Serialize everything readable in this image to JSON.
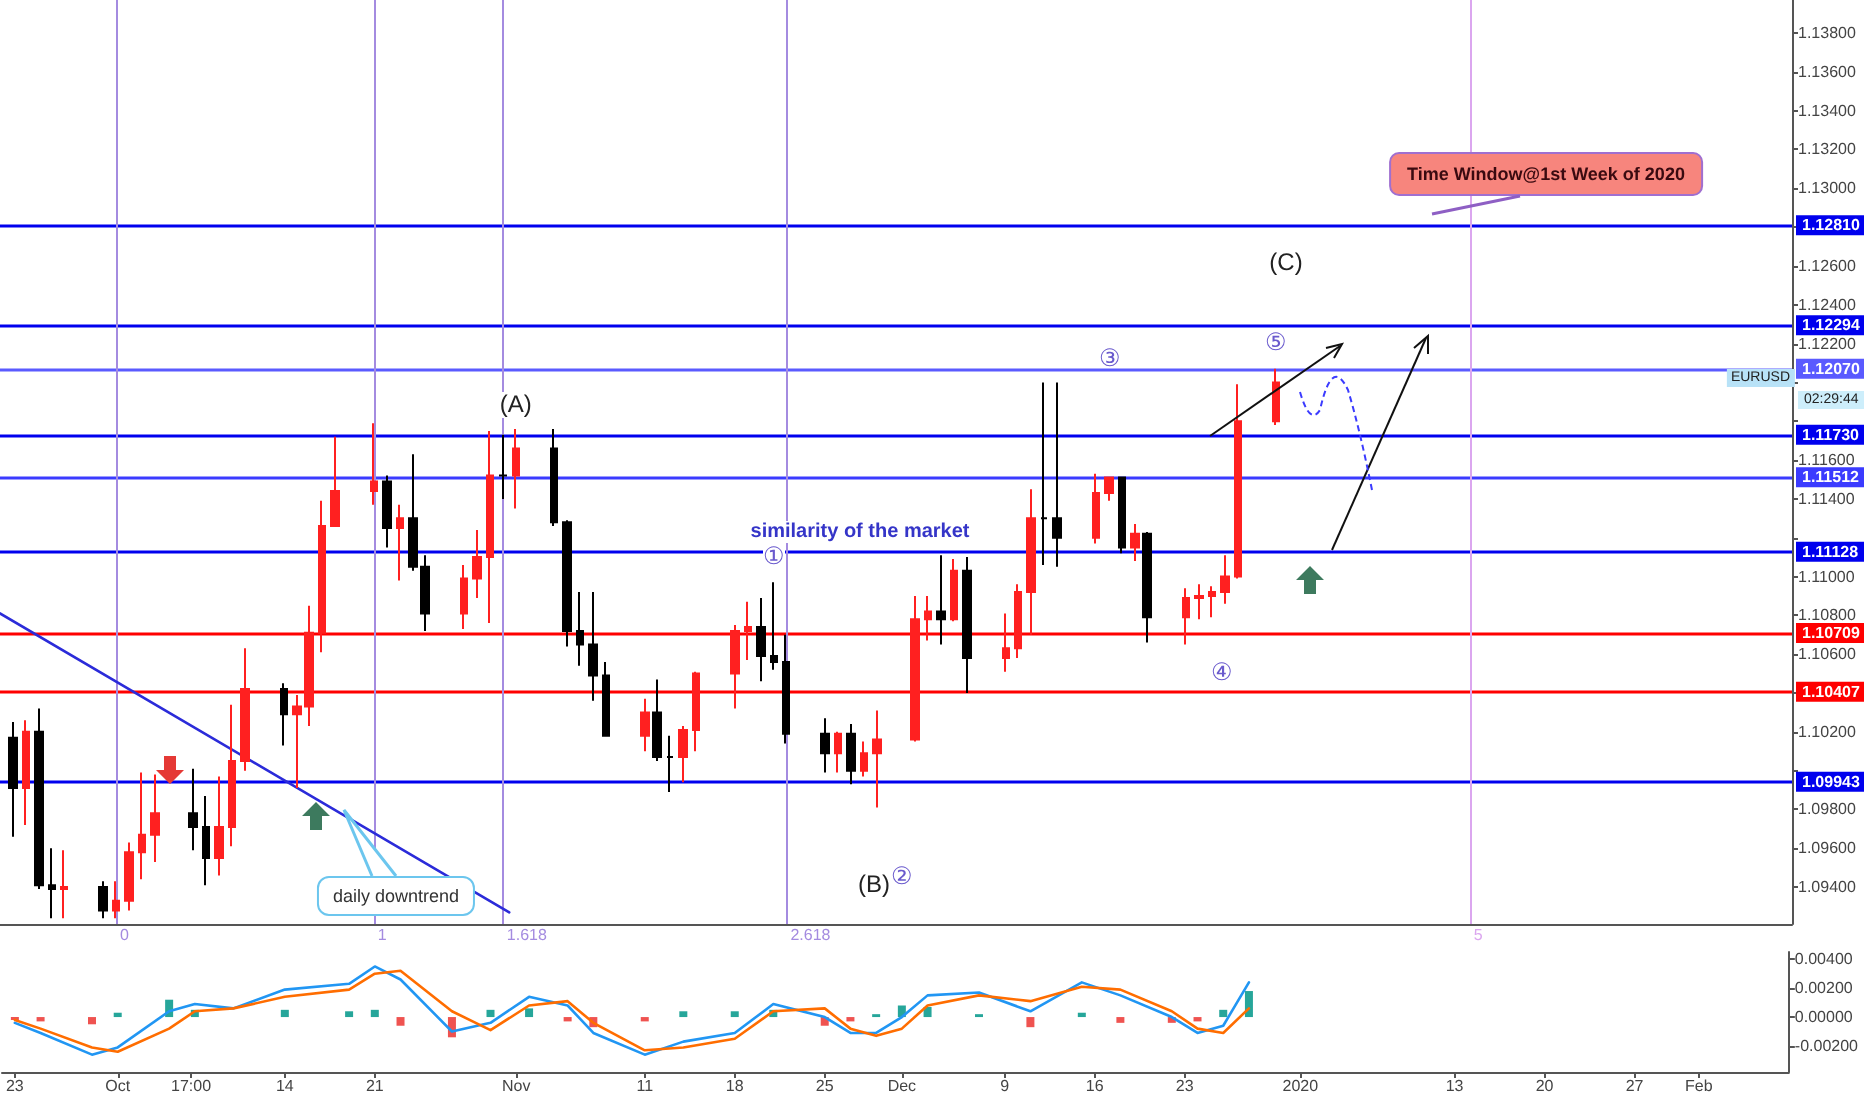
{
  "chart_data": [
    {
      "type": "candlestick",
      "tick_labels": "y",
      "grid": false,
      "marker": "none",
      "xlim": [
        "2019-09-22",
        "2020-02-08"
      ],
      "ylim": [
        1.0921,
        1.1397
      ],
      "yticks": [
        {
          "value": 1.094,
          "label": "1.09400"
        },
        {
          "value": 1.096,
          "label": "1.09600"
        },
        {
          "value": 1.098,
          "label": "1.09800"
        },
        {
          "value": 1.1,
          "label": null
        },
        {
          "value": 1.102,
          "label": "1.10200"
        },
        {
          "value": 1.104,
          "label": null
        },
        {
          "value": 1.106,
          "label": "1.10600"
        },
        {
          "value": 1.108,
          "label": "1.10800"
        },
        {
          "value": 1.11,
          "label": "1.11000"
        },
        {
          "value": 1.112,
          "label": null
        },
        {
          "value": 1.114,
          "label": "1.11400"
        },
        {
          "value": 1.116,
          "label": "1.11600"
        },
        {
          "value": 1.118,
          "label": null
        },
        {
          "value": 1.12,
          "label": null
        },
        {
          "value": 1.122,
          "label": "1.12200"
        },
        {
          "value": 1.124,
          "label": "1.12400"
        },
        {
          "value": 1.126,
          "label": "1.12600"
        },
        {
          "value": 1.128,
          "label": null
        },
        {
          "value": 1.13,
          "label": "1.13000"
        },
        {
          "value": 1.132,
          "label": "1.13200"
        },
        {
          "value": 1.134,
          "label": "1.13400"
        },
        {
          "value": 1.136,
          "label": "1.13600"
        },
        {
          "value": 1.138,
          "label": "1.13800"
        }
      ],
      "series": [
        {
          "x": [
            "2019-09-23",
            "2019-09-24",
            "2019-09-25",
            "2019-09-26",
            "2019-09-27",
            "2019-09-30",
            "2019-10-01",
            "2019-10-02",
            "2019-10-03",
            "2019-10-04",
            "2019-10-07",
            "2019-10-08",
            "2019-10-09",
            "2019-10-10",
            "2019-10-11",
            "2019-10-14",
            "2019-10-15",
            "2019-10-16",
            "2019-10-17",
            "2019-10-18",
            "2019-10-21",
            "2019-10-22",
            "2019-10-23",
            "2019-10-24",
            "2019-10-25",
            "2019-10-28",
            "2019-10-29",
            "2019-10-30",
            "2019-10-31",
            "2019-11-01",
            "2019-11-04",
            "2019-11-05",
            "2019-11-06",
            "2019-11-07",
            "2019-11-08",
            "2019-11-11",
            "2019-11-12",
            "2019-11-13",
            "2019-11-14",
            "2019-11-15",
            "2019-11-18",
            "2019-11-19",
            "2019-11-20",
            "2019-11-21",
            "2019-11-22",
            "2019-11-25",
            "2019-11-26",
            "2019-11-27",
            "2019-11-28",
            "2019-11-29",
            "2019-12-02",
            "2019-12-03",
            "2019-12-04",
            "2019-12-05",
            "2019-12-06",
            "2019-12-09",
            "2019-12-10",
            "2019-12-11",
            "2019-12-12",
            "2019-12-13",
            "2019-12-16",
            "2019-12-17",
            "2019-12-18",
            "2019-12-19",
            "2019-12-20",
            "2019-12-23",
            "2019-12-24",
            "2019-12-25",
            "2019-12-26",
            "2019-12-27",
            "2019-12-30"
          ],
          "ohlc": [
            [
              1.1017,
              1.1025,
              1.0966,
              1.0991
            ],
            [
              1.0991,
              1.1026,
              1.0972,
              1.102
            ],
            [
              1.102,
              1.1032,
              1.0939,
              1.0941
            ],
            [
              1.0941,
              1.096,
              1.0924,
              1.0939
            ],
            [
              1.0939,
              1.0959,
              1.0924,
              1.094
            ],
            [
              1.094,
              1.0943,
              1.0924,
              1.0928
            ],
            [
              1.0928,
              1.0943,
              1.0924,
              1.0933
            ],
            [
              1.0933,
              1.0963,
              1.0928,
              1.0958
            ],
            [
              1.0958,
              1.0999,
              1.0944,
              1.0967
            ],
            [
              1.0967,
              1.0998,
              1.0953,
              1.0978
            ],
            [
              1.0978,
              1.1001,
              1.0959,
              1.0971
            ],
            [
              1.0971,
              1.0987,
              1.0941,
              1.0955
            ],
            [
              1.0955,
              1.0997,
              1.0946,
              1.0971
            ],
            [
              1.0971,
              1.1034,
              1.0961,
              1.1005
            ],
            [
              1.1005,
              1.1063,
              1.1,
              1.1042
            ],
            [
              1.1042,
              1.1045,
              1.1013,
              1.1029
            ],
            [
              1.1029,
              1.1039,
              1.0991,
              1.1033
            ],
            [
              1.1033,
              1.1085,
              1.1023,
              1.1071
            ],
            [
              1.1071,
              1.1139,
              1.1061,
              1.1126
            ],
            [
              1.1126,
              1.1172,
              1.1126,
              1.1144
            ],
            [
              1.1144,
              1.1179,
              1.1137,
              1.1149
            ],
            [
              1.1149,
              1.1152,
              1.1115,
              1.1125
            ],
            [
              1.1125,
              1.1137,
              1.1098,
              1.113
            ],
            [
              1.113,
              1.1163,
              1.1103,
              1.1105
            ],
            [
              1.1105,
              1.1111,
              1.1072,
              1.1081
            ],
            [
              1.1081,
              1.1106,
              1.1073,
              1.1099
            ],
            [
              1.1099,
              1.1124,
              1.1089,
              1.111
            ],
            [
              1.111,
              1.1175,
              1.1076,
              1.1152
            ],
            [
              1.1152,
              1.1173,
              1.114,
              1.1152
            ],
            [
              1.1152,
              1.1176,
              1.1135,
              1.1166
            ],
            [
              1.1166,
              1.1176,
              1.1126,
              1.1128
            ],
            [
              1.1128,
              1.1129,
              1.1064,
              1.1072
            ],
            [
              1.1072,
              1.1092,
              1.1054,
              1.1065
            ],
            [
              1.1065,
              1.1092,
              1.1036,
              1.1049
            ],
            [
              1.1049,
              1.1056,
              1.1018,
              1.1018
            ],
            [
              1.1018,
              1.1037,
              1.101,
              1.103
            ],
            [
              1.103,
              1.1047,
              1.1005,
              1.1007
            ],
            [
              1.1007,
              1.1018,
              1.0989,
              1.1007
            ],
            [
              1.1007,
              1.1023,
              1.0994,
              1.1021
            ],
            [
              1.1021,
              1.1051,
              1.101,
              1.105
            ],
            [
              1.105,
              1.1075,
              1.1032,
              1.1072
            ],
            [
              1.1072,
              1.1087,
              1.1057,
              1.1074
            ],
            [
              1.1074,
              1.1089,
              1.1046,
              1.1059
            ],
            [
              1.1059,
              1.1097,
              1.1052,
              1.1056
            ],
            [
              1.1056,
              1.107,
              1.1014,
              1.1019
            ],
            [
              1.1019,
              1.1027,
              1.0999,
              1.1009
            ],
            [
              1.1009,
              1.102,
              1.0999,
              1.1019
            ],
            [
              1.1019,
              1.1024,
              1.0993,
              1.1
            ],
            [
              1.1,
              1.1015,
              1.0997,
              1.1009
            ],
            [
              1.1009,
              1.1031,
              1.0981,
              1.1016
            ],
            [
              1.1016,
              1.109,
              1.1015,
              1.1078
            ],
            [
              1.1078,
              1.109,
              1.1067,
              1.1082
            ],
            [
              1.1082,
              1.1111,
              1.1065,
              1.1078
            ],
            [
              1.1078,
              1.1109,
              1.1077,
              1.1103
            ],
            [
              1.1103,
              1.111,
              1.104,
              1.1058
            ],
            [
              1.1058,
              1.1081,
              1.1051,
              1.1063
            ],
            [
              1.1063,
              1.1096,
              1.1058,
              1.1092
            ],
            [
              1.1092,
              1.1145,
              1.107,
              1.113
            ],
            [
              1.113,
              1.12,
              1.1106,
              1.113
            ],
            [
              1.113,
              1.12,
              1.1105,
              1.112
            ],
            [
              1.112,
              1.1153,
              1.1117,
              1.1143
            ],
            [
              1.1143,
              1.1151,
              1.1139,
              1.1151
            ],
            [
              1.1151,
              1.1151,
              1.1112,
              1.1115
            ],
            [
              1.1115,
              1.1127,
              1.1108,
              1.1122
            ],
            [
              1.1122,
              1.1123,
              1.1066,
              1.1079
            ],
            [
              1.1079,
              1.1094,
              1.1065,
              1.1089
            ],
            [
              1.1089,
              1.1096,
              1.1078,
              1.109
            ],
            [
              1.109,
              1.1095,
              1.1079,
              1.1092
            ],
            [
              1.1092,
              1.1111,
              1.1086,
              1.11
            ],
            [
              1.11,
              1.1199,
              1.1099,
              1.118
            ],
            [
              1.118,
              1.1207,
              1.1178,
              1.12
            ]
          ],
          "colors": [
            "#000000",
            "#ff2020",
            "#000000",
            "#000000",
            "#ff2020",
            "#000000",
            "#ff2020",
            "#ff2020",
            "#ff2020",
            "#ff2020",
            "#000000",
            "#000000",
            "#ff2020",
            "#ff2020",
            "#ff2020",
            "#000000",
            "#ff2020",
            "#ff2020",
            "#ff2020",
            "#ff2020",
            "#ff2020",
            "#000000",
            "#ff2020",
            "#000000",
            "#000000",
            "#ff2020",
            "#ff2020",
            "#ff2020",
            "#000000",
            "#ff2020",
            "#000000",
            "#000000",
            "#000000",
            "#000000",
            "#000000",
            "#ff2020",
            "#000000",
            "#000000",
            "#ff2020",
            "#ff2020",
            "#ff2020",
            "#ff2020",
            "#000000",
            "#000000",
            "#000000",
            "#000000",
            "#ff2020",
            "#000000",
            "#ff2020",
            "#ff2020",
            "#ff2020",
            "#ff2020",
            "#000000",
            "#ff2020",
            "#000000",
            "#ff2020",
            "#ff2020",
            "#ff2020",
            "#000000",
            "#000000",
            "#ff2020",
            "#ff2020",
            "#000000",
            "#ff2020",
            "#000000",
            "#ff2020",
            "#ff2020",
            "#ff2020",
            "#ff2020",
            "#ff2020",
            "#ff2020"
          ]
        },
        {
          "type": "line",
          "x": [
            "2019-09-22",
            "2019-10-31T12:00"
          ],
          "values": [
            1.1081,
            1.0927
          ],
          "color": "#2b2bd9"
        }
      ],
      "ref_lines": [
        {
          "axis": "y",
          "value": 1.1281,
          "label": "1.12810",
          "color": "#0000ee"
        },
        {
          "axis": "y",
          "value": 1.12294,
          "label": "1.12294",
          "color": "#0000ee"
        },
        {
          "axis": "y",
          "value": 1.1207,
          "label": "1.12070",
          "color": "#5a5aff"
        },
        {
          "axis": "y",
          "value": 1.1173,
          "label": "1.11730",
          "color": "#0000ee"
        },
        {
          "axis": "y",
          "value": 1.11512,
          "label": "1.11512",
          "color": "#3b3bff"
        },
        {
          "axis": "y",
          "value": 1.11128,
          "label": "1.11128",
          "color": "#0000ee"
        },
        {
          "axis": "y",
          "value": 1.10709,
          "label": "1.10709",
          "color": "#ff0000"
        },
        {
          "axis": "y",
          "value": 1.10407,
          "label": "1.10407",
          "color": "#ff0000"
        },
        {
          "axis": "y",
          "value": 1.09943,
          "label": "1.09943",
          "color": "#0000ee"
        },
        {
          "axis": "x",
          "value": "2019-10-01",
          "label": "0",
          "color": "#a48be0"
        },
        {
          "axis": "x",
          "value": "2019-10-21",
          "label": "1",
          "color": "#a48be0"
        },
        {
          "axis": "x",
          "value": "2019-10-31",
          "label": "1.618",
          "color": "#a48be0"
        },
        {
          "axis": "x",
          "value": "2019-11-22",
          "label": "2.618",
          "color": "#a48be0"
        },
        {
          "axis": "x",
          "value": "2020-01-14",
          "label": "5",
          "color": "#dba6ef"
        }
      ],
      "annotations": [
        {
          "text": "(A)",
          "x": "2019-11-01",
          "y": 1.1176
        },
        {
          "text": "①",
          "x": "2019-11-21",
          "y": 1.1097
        },
        "(B)",
        "(C)",
        "②",
        "③",
        "④",
        {
          "text": "⑤",
          "x": "2019-12-30",
          "y": 1.1207
        },
        "similarity of the market",
        "daily downtrend",
        "Time Window@1st Week of 2020",
        "EURUSD",
        "02:29:44"
      ]
    },
    {
      "type": "line",
      "grid": false,
      "marker": "none",
      "xlim": [
        "2019-09-22",
        "2020-02-08"
      ],
      "ylim": [
        -0.0038,
        0.0045
      ],
      "xticks": [
        {
          "value": "2019-09-23",
          "label": "23"
        },
        {
          "value": "2019-10-01",
          "label": "Oct"
        },
        {
          "value": "2019-10-06T17:00",
          "label": "17:00"
        },
        {
          "value": "2019-10-14",
          "label": "14"
        },
        {
          "value": "2019-10-21",
          "label": "21"
        },
        {
          "value": "2019-11-01",
          "label": "Nov"
        },
        {
          "value": "2019-11-11",
          "label": "11"
        },
        {
          "value": "2019-11-18",
          "label": "18"
        },
        {
          "value": "2019-11-25",
          "label": "25"
        },
        {
          "value": "2019-12-01",
          "label": "Dec"
        },
        {
          "value": "2019-12-09",
          "label": "9"
        },
        {
          "value": "2019-12-16",
          "label": "16"
        },
        {
          "value": "2019-12-23",
          "label": "23"
        },
        {
          "value": "2020-01-01",
          "label": "2020"
        },
        {
          "value": "2020-01-13",
          "label": "13"
        },
        {
          "value": "2020-01-20",
          "label": "20"
        },
        {
          "value": "2020-01-27",
          "label": "27"
        },
        {
          "value": "2020-02-01",
          "label": "Feb"
        }
      ],
      "yticks": [
        {
          "value": -0.002,
          "label": "-0.00200"
        },
        {
          "value": 0,
          "label": "0.00000"
        },
        {
          "value": 0.002,
          "label": "0.00200"
        },
        {
          "value": 0.004,
          "label": "0.00400"
        }
      ],
      "x": [
        "2019-09-23",
        "2019-09-25",
        "2019-09-29",
        "2019-10-01",
        "2019-10-05",
        "2019-10-07",
        "2019-10-10",
        "2019-10-14",
        "2019-10-19",
        "2019-10-21",
        "2019-10-23",
        "2019-10-27",
        "2019-10-30",
        "2019-11-02",
        "2019-11-05",
        "2019-11-07",
        "2019-11-11",
        "2019-11-14",
        "2019-11-18",
        "2019-11-21",
        "2019-11-25",
        "2019-11-27",
        "2019-11-29",
        "2019-12-01",
        "2019-12-03",
        "2019-12-07",
        "2019-12-11",
        "2019-12-15",
        "2019-12-18",
        "2019-12-22",
        "2019-12-24",
        "2019-12-26",
        "2019-12-28"
      ],
      "series": [
        {
          "type": "bar",
          "values": [
            -0.0002,
            -0.0003,
            -0.0005,
            0.0003,
            0.0012,
            0.0005,
            0,
            0.0005,
            0.0004,
            0.0005,
            -0.0006,
            -0.0014,
            0.0005,
            0.0006,
            -0.0003,
            -0.0007,
            -0.0003,
            0.0004,
            0.0004,
            0.0005,
            -0.0006,
            -0.0003,
            0.0002,
            0.0008,
            0.0007,
            0.0002,
            -0.0007,
            0.0003,
            -0.0004,
            -0.0004,
            -0.0003,
            0.0005,
            0.0018
          ],
          "colors": [
            "#ef5350",
            "#ef5350",
            "#ef5350",
            "#26a69a",
            "#26a69a",
            "#26a69a",
            "#26a69a",
            "#26a69a",
            "#26a69a",
            "#26a69a",
            "#ef5350",
            "#ef5350",
            "#26a69a",
            "#26a69a",
            "#ef5350",
            "#ef5350",
            "#ef5350",
            "#26a69a",
            "#26a69a",
            "#26a69a",
            "#ef5350",
            "#ef5350",
            "#26a69a",
            "#26a69a",
            "#26a69a",
            "#26a69a",
            "#ef5350",
            "#26a69a",
            "#ef5350",
            "#ef5350",
            "#ef5350",
            "#26a69a",
            "#26a69a"
          ]
        },
        {
          "color": "#2196f3",
          "values": [
            -0.0004,
            -0.0011,
            -0.0026,
            -0.0021,
            0.0004,
            0.0009,
            0.0006,
            0.0019,
            0.0023,
            0.0035,
            0.0026,
            -0.001,
            -0.0004,
            0.0014,
            0.0008,
            -0.0011,
            -0.0026,
            -0.0017,
            -0.0011,
            0.0009,
            0,
            -0.0011,
            -0.0011,
            0,
            0.0015,
            0.0017,
            0.0004,
            0.0024,
            0.0015,
            0,
            -0.0011,
            -0.0006,
            0.0024
          ]
        },
        {
          "color": "#ff6d00",
          "values": [
            -0.0002,
            -0.0008,
            -0.0021,
            -0.0024,
            -0.0008,
            0.0004,
            0.0006,
            0.0014,
            0.0019,
            0.003,
            0.0032,
            0.0004,
            -0.0009,
            0.0008,
            0.0011,
            -0.0004,
            -0.0023,
            -0.0021,
            -0.0015,
            0.0004,
            0.0006,
            -0.0008,
            -0.0013,
            -0.0008,
            0.0008,
            0.0015,
            0.0011,
            0.0021,
            0.0019,
            0.0004,
            -0.0008,
            -0.0011,
            0.0006
          ]
        }
      ]
    }
  ]
}
